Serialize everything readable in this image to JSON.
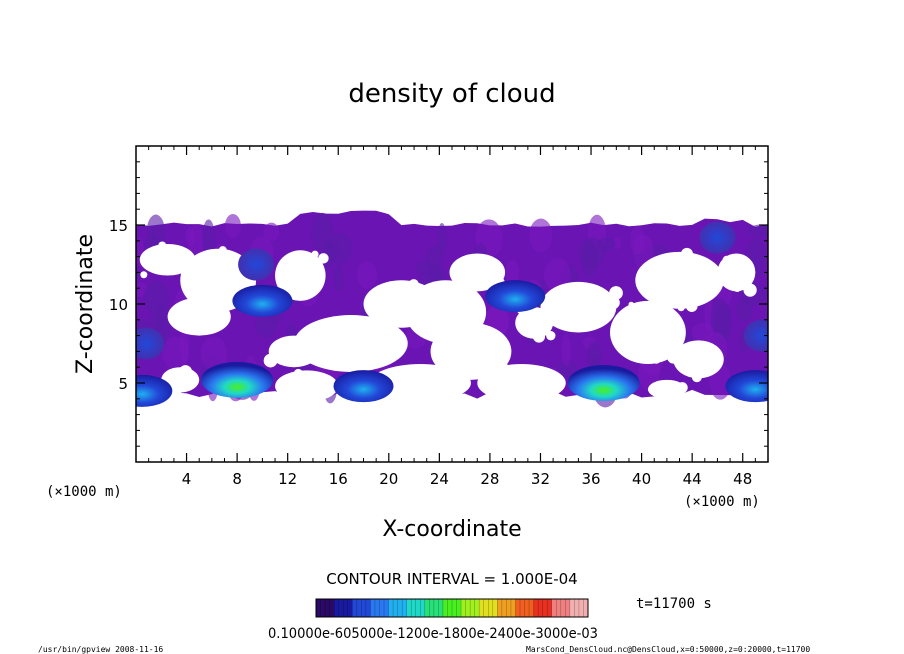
{
  "chart_data": {
    "type": "heatmap",
    "title": "density of cloud",
    "xlabel": "X-coordinate",
    "ylabel": "Z-coordinate",
    "x_unit": "(×1000 m)",
    "y_unit": "(×1000 m)",
    "xlim": [
      0,
      50
    ],
    "ylim": [
      0,
      20
    ],
    "x_ticks": [
      4,
      8,
      12,
      16,
      20,
      24,
      28,
      32,
      36,
      40,
      44,
      48
    ],
    "y_ticks": [
      5,
      10,
      15
    ],
    "x_tick_labels": [
      "4",
      "8",
      "12",
      "16",
      "20",
      "24",
      "28",
      "32",
      "36",
      "40",
      "44",
      "48"
    ],
    "y_tick_labels": [
      "5",
      "10",
      "15"
    ],
    "grid": false,
    "contour_interval": "CONTOUR INTERVAL = 1.000E-04",
    "time_label": "t=11700 s",
    "colorbar": {
      "min": 0.0,
      "max": 0.001,
      "labels_text": "0.10000e-605000e-1200e-1800e-2400e-3000e-03",
      "colors": [
        "#2a0a64",
        "#1a1aa0",
        "#2248d8",
        "#2a78f0",
        "#20b0f0",
        "#20d8c8",
        "#28e078",
        "#48f020",
        "#a0f020",
        "#e0e020",
        "#f0a020",
        "#f06020",
        "#e83020",
        "#f08080",
        "#f0b0b0"
      ]
    },
    "cloud_region": {
      "z_base": 4,
      "z_top": 15,
      "z_top_max": 15.8,
      "background_value": 0.0001
    },
    "maxima": [
      {
        "x": 8,
        "z": 5.2,
        "value": 0.0007
      },
      {
        "x": 37,
        "z": 5.0,
        "value": 0.0007
      },
      {
        "x": 18,
        "z": 4.8,
        "value": 0.0003
      },
      {
        "x": 49,
        "z": 4.8,
        "value": 0.0003
      },
      {
        "x": 0.5,
        "z": 4.5,
        "value": 0.0003
      },
      {
        "x": 10,
        "z": 10.2,
        "value": 0.0003
      },
      {
        "x": 30,
        "z": 10.5,
        "value": 0.0003
      },
      {
        "x": 9.5,
        "z": 12.5,
        "value": 0.0002
      },
      {
        "x": 46,
        "z": 14.2,
        "value": 0.0002
      },
      {
        "x": 0.8,
        "z": 7.5,
        "value": 0.0002
      },
      {
        "x": 49.5,
        "z": 8.0,
        "value": 0.0002
      }
    ]
  },
  "footer": {
    "left": "/usr/bin/gpview  2008-11-16",
    "right": "MarsCond_DensCloud.nc@DensCloud,x=0:50000,z=0:20000,t=11700"
  }
}
